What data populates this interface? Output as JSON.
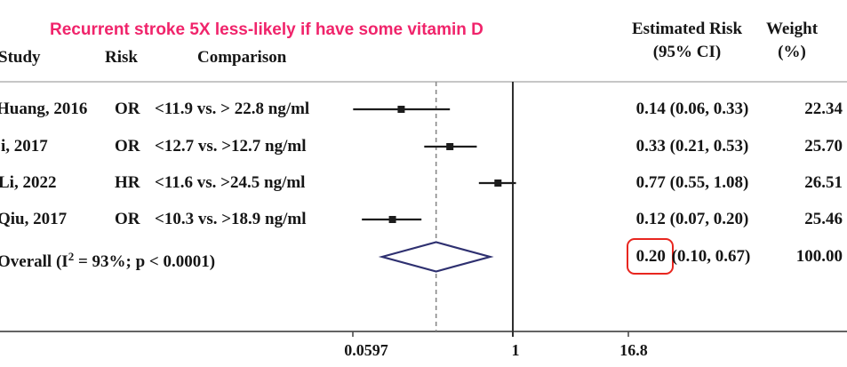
{
  "annotation": {
    "text": "Recurrent stroke 5X less-likely if have some vitamin D"
  },
  "columns": {
    "study": "Study",
    "risk": "Risk",
    "comparison": "Comparison",
    "estimate_line1": "Estimated Risk",
    "estimate_line2": "(95% CI)",
    "weight_line1": "Weight",
    "weight_line2": "(%)"
  },
  "colors": {
    "annotation_pink": "#F0246B",
    "diamond_navy": "#2E3070",
    "highlight_red": "#E8261F",
    "text_black": "#161616",
    "axis_gray": "#4d4d4d",
    "top_rule_gray": "#b3b3b3",
    "dashed_gray": "#8a8a8a",
    "ref_line_dark": "#2f2f2f"
  },
  "chart_data": {
    "type": "forest",
    "x_scale": "log",
    "x_ticks": [
      0.0597,
      1,
      16.8
    ],
    "x_tick_labels": [
      "0.0597",
      "1",
      "16.8"
    ],
    "reference_value": 1,
    "grid": false,
    "studies": [
      {
        "study": "Huang, 2016",
        "risk_measure": "OR",
        "comparison": "<11.9 vs. > 22.8 ng/ml",
        "estimate": 0.14,
        "ci_low": 0.06,
        "ci_high": 0.33,
        "estimate_ci_label": "0.14 (0.06, 0.33)",
        "weight_pct": "22.34"
      },
      {
        "study": "i, 2017",
        "risk_measure": "OR",
        "comparison": "<12.7 vs. >12.7 ng/ml",
        "estimate": 0.33,
        "ci_low": 0.21,
        "ci_high": 0.53,
        "estimate_ci_label": "0.33 (0.21, 0.53)",
        "weight_pct": "25.70"
      },
      {
        "study": "Li, 2022",
        "risk_measure": "HR",
        "comparison": "<11.6 vs. >24.5 ng/ml",
        "estimate": 0.77,
        "ci_low": 0.55,
        "ci_high": 1.08,
        "estimate_ci_label": "0.77 (0.55, 1.08)",
        "weight_pct": "26.51"
      },
      {
        "study": "Qiu, 2017",
        "risk_measure": "OR",
        "comparison": "<10.3 vs. >18.9 ng/ml",
        "estimate": 0.12,
        "ci_low": 0.07,
        "ci_high": 0.2,
        "estimate_ci_label": "0.12 (0.07, 0.20)",
        "weight_pct": "25.46"
      }
    ],
    "overall": {
      "label_prefix": "Overall (I",
      "label_sup": "2",
      "label_suffix": " = 93%; p < 0.0001)",
      "estimate": 0.2,
      "ci_low": 0.1,
      "ci_high": 0.67,
      "estimate_highlight": "0.20",
      "estimate_rest": " (0.10, 0.67)",
      "weight_pct": "100.00"
    }
  }
}
